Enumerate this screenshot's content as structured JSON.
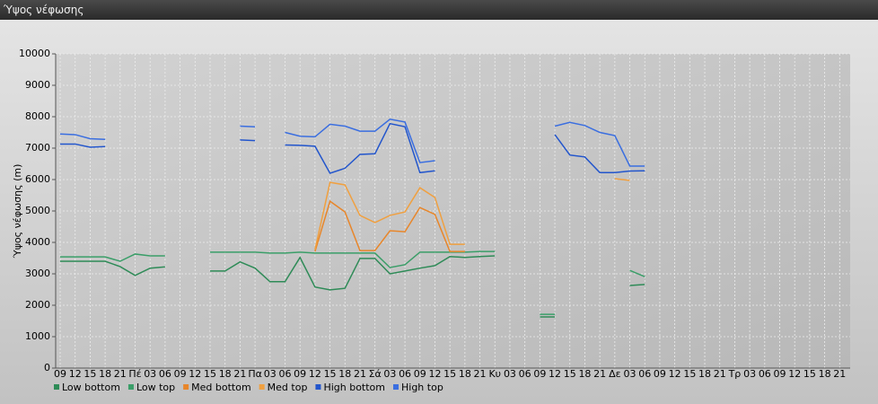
{
  "panel_title": "Ύψος νέφωσης",
  "chart_data": {
    "type": "line",
    "y_label": "Ύψος νέφωσης (m)",
    "categories": [
      "09",
      "12",
      "15",
      "18",
      "21",
      "Πέ",
      "03",
      "06",
      "09",
      "12",
      "15",
      "18",
      "21",
      "Πα",
      "03",
      "06",
      "09",
      "12",
      "15",
      "18",
      "21",
      "Σά",
      "03",
      "06",
      "09",
      "12",
      "15",
      "18",
      "21",
      "Κυ",
      "03",
      "06",
      "09",
      "12",
      "15",
      "18",
      "21",
      "Δε",
      "03",
      "06",
      "09",
      "12",
      "15",
      "18",
      "21",
      "Τρ",
      "03",
      "06",
      "09",
      "12",
      "15",
      "18",
      "21"
    ],
    "ylim": [
      0,
      10000
    ],
    "yticks": [
      0,
      1000,
      2000,
      3000,
      4000,
      5000,
      6000,
      7000,
      8000,
      9000,
      10000
    ],
    "grid": true,
    "series": [
      {
        "name": "Low bottom",
        "color": "#2e8b57",
        "values": [
          3400,
          3400,
          3400,
          3400,
          3230,
          2950,
          3180,
          3220,
          null,
          null,
          3090,
          3090,
          3380,
          3180,
          2750,
          2750,
          3520,
          2580,
          2490,
          2540,
          3490,
          3490,
          3000,
          3090,
          3180,
          3260,
          3550,
          3520,
          3550,
          3570,
          null,
          null,
          1630,
          1630,
          null,
          null,
          null,
          null,
          2630,
          2660,
          null,
          null,
          null,
          null,
          null,
          null,
          null,
          null,
          null,
          null,
          null,
          null,
          null
        ]
      },
      {
        "name": "Low top",
        "color": "#3a9e68",
        "values": [
          3540,
          3540,
          3540,
          3540,
          3400,
          3630,
          3570,
          3570,
          null,
          null,
          3690,
          3690,
          3690,
          3690,
          3660,
          3660,
          3690,
          3660,
          3660,
          3660,
          3660,
          3660,
          3200,
          3290,
          3690,
          3690,
          3690,
          3690,
          3710,
          3710,
          null,
          null,
          1710,
          1710,
          null,
          null,
          null,
          null,
          3110,
          2910,
          null,
          null,
          null,
          null,
          null,
          null,
          null,
          null,
          null,
          null,
          null,
          null,
          null
        ]
      },
      {
        "name": "Med bottom",
        "color": "#e8862a",
        "values": [
          null,
          null,
          null,
          null,
          null,
          null,
          null,
          null,
          null,
          null,
          null,
          null,
          null,
          null,
          null,
          null,
          null,
          3710,
          5310,
          4970,
          3740,
          3740,
          4370,
          4340,
          5110,
          4890,
          3710,
          3710,
          null,
          null,
          null,
          null,
          null,
          null,
          null,
          null,
          null,
          null,
          null,
          null,
          null,
          null,
          null,
          null,
          null,
          null,
          null,
          null,
          null,
          null,
          null,
          null,
          null
        ]
      },
      {
        "name": "Med top",
        "color": "#f0a040",
        "values": [
          null,
          null,
          null,
          null,
          null,
          null,
          null,
          null,
          null,
          null,
          null,
          null,
          null,
          null,
          null,
          null,
          null,
          3770,
          5910,
          5830,
          4860,
          4630,
          4860,
          4970,
          5740,
          5430,
          3940,
          3940,
          null,
          null,
          null,
          null,
          null,
          null,
          null,
          null,
          null,
          6030,
          5970,
          null,
          null,
          null,
          null,
          null,
          null,
          null,
          null,
          null,
          null,
          null,
          null,
          null,
          null
        ]
      },
      {
        "name": "High bottom",
        "color": "#2255cc",
        "values": [
          7130,
          7130,
          7030,
          7050,
          null,
          null,
          null,
          null,
          null,
          null,
          null,
          null,
          7260,
          7240,
          null,
          7100,
          7090,
          7060,
          6200,
          6360,
          6800,
          6820,
          7780,
          7680,
          6220,
          6280,
          null,
          null,
          null,
          null,
          null,
          null,
          null,
          7430,
          6780,
          6720,
          6220,
          6220,
          6270,
          6280,
          null,
          null,
          null,
          null,
          null,
          null,
          null,
          null,
          null,
          null,
          null,
          null,
          null
        ]
      },
      {
        "name": "High top",
        "color": "#3a6ee0",
        "values": [
          7450,
          7430,
          7300,
          7280,
          null,
          null,
          null,
          null,
          null,
          null,
          null,
          null,
          7700,
          7680,
          null,
          7500,
          7380,
          7360,
          7760,
          7700,
          7540,
          7540,
          7920,
          7830,
          6540,
          6600,
          null,
          null,
          null,
          null,
          null,
          null,
          null,
          7700,
          7820,
          7720,
          7500,
          7400,
          6430,
          6430,
          null,
          null,
          null,
          null,
          null,
          null,
          null,
          null,
          null,
          null,
          null,
          null,
          null
        ]
      }
    ]
  }
}
